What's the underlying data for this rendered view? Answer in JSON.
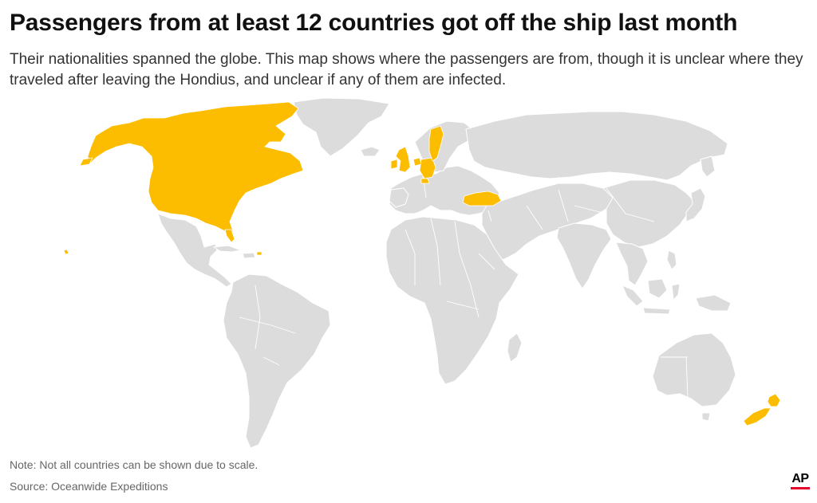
{
  "title": "Passengers from at least 12 countries got off the ship last month",
  "subtitle": "Their nationalities spanned the globe. This map shows where the passengers are from, though it is unclear where they traveled after leaving the Hondius, and unclear if any of them are infected.",
  "note": "Note: Not all countries can be shown due to scale.",
  "source": "Source: Oceanwide Expeditions",
  "logo_text": "AP",
  "colors": {
    "highlight": "#FCBD00",
    "land": "#DCDCDC",
    "background": "#FFFFFF",
    "logo_accent": "#E4002B"
  }
}
